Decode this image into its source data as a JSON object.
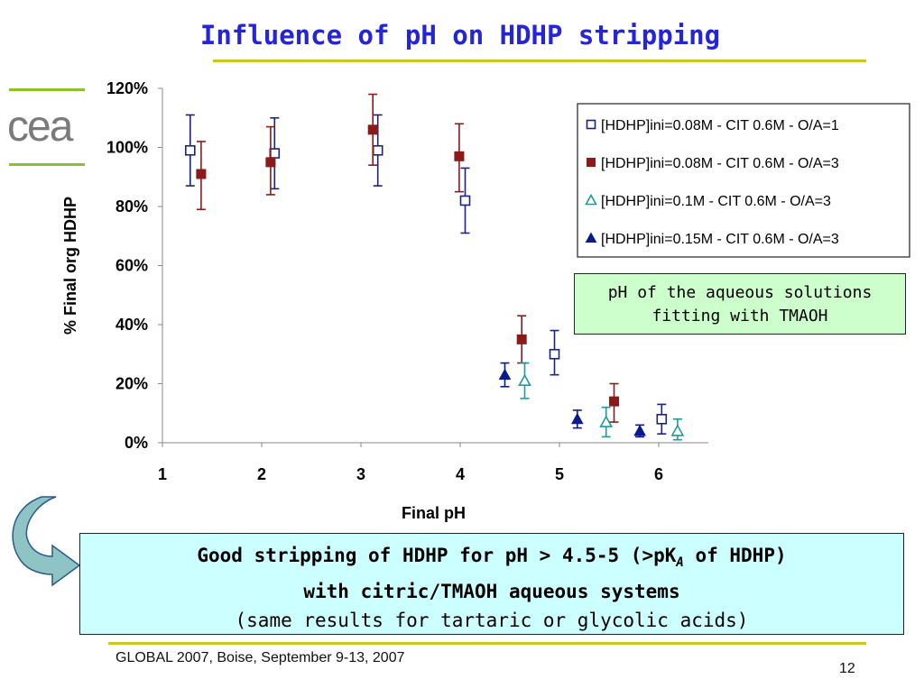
{
  "slide": {
    "title": "Influence of pH on HDHP stripping",
    "note_lines": [
      "pH of the aqueous solutions",
      "fitting with TMAOH"
    ],
    "conclusion": {
      "line1_a": "Good stripping of HDHP for pH > 4.5-5 (>pK",
      "line1_sub": "A",
      "line1_b": " of HDHP)",
      "line2": "with citric/TMAOH aqueous systems",
      "line3": "(same results for tartaric or glycolic acids)"
    },
    "footer": "GLOBAL 2007, Boise, September 9-13, 2007",
    "page_number": "12",
    "logo_text": "cea",
    "colors": {
      "title": "#2424d8",
      "accent_rule": "#c8c81e",
      "logo_bars": "#8ac22a",
      "logo_text": "#7a7a7a"
    }
  },
  "chart_data": {
    "type": "scatter",
    "xlabel": "Final pH",
    "ylabel": "% Final org HDHP",
    "xlim": [
      1,
      6.5
    ],
    "ylim": [
      0,
      120
    ],
    "x_ticks": [
      "1",
      "2",
      "3",
      "4",
      "5",
      "6"
    ],
    "y_ticks": [
      "0%",
      "20%",
      "40%",
      "60%",
      "80%",
      "100%",
      "120%"
    ],
    "grid": false,
    "legend_position": "top-right",
    "series": [
      {
        "name": "[HDHP]ini=0.08M - CIT 0.6M - O/A=1",
        "marker": "open-square",
        "color": "#1a237e",
        "points": [
          {
            "x": 1.28,
            "y": 99,
            "lo": 87,
            "hi": 111
          },
          {
            "x": 2.13,
            "y": 98,
            "lo": 86,
            "hi": 110
          },
          {
            "x": 3.17,
            "y": 99,
            "lo": 87,
            "hi": 111
          },
          {
            "x": 4.05,
            "y": 82,
            "lo": 71,
            "hi": 93
          },
          {
            "x": 4.95,
            "y": 30,
            "lo": 23,
            "hi": 38
          },
          {
            "x": 6.03,
            "y": 8,
            "lo": 3,
            "hi": 13
          }
        ]
      },
      {
        "name": "[HDHP]ini=0.08M - CIT 0.6M - O/A=3",
        "marker": "filled-square",
        "color": "#8b1a1a",
        "points": [
          {
            "x": 1.39,
            "y": 91,
            "lo": 79,
            "hi": 102
          },
          {
            "x": 2.09,
            "y": 95,
            "lo": 84,
            "hi": 107
          },
          {
            "x": 3.12,
            "y": 106,
            "lo": 94,
            "hi": 118
          },
          {
            "x": 3.99,
            "y": 97,
            "lo": 85,
            "hi": 108
          },
          {
            "x": 4.62,
            "y": 35,
            "lo": 27,
            "hi": 43
          },
          {
            "x": 5.55,
            "y": 14,
            "lo": 7,
            "hi": 20
          }
        ]
      },
      {
        "name": "[HDHP]ini=0.1M - CIT 0.6M - O/A=3",
        "marker": "open-triangle",
        "color": "#1e9a9a",
        "points": [
          {
            "x": 4.65,
            "y": 21,
            "lo": 15,
            "hi": 27
          },
          {
            "x": 5.47,
            "y": 7,
            "lo": 2,
            "hi": 12
          },
          {
            "x": 6.19,
            "y": 4,
            "lo": 1,
            "hi": 8
          }
        ]
      },
      {
        "name": "[HDHP]ini=0.15M - CIT 0.6M - O/A=3",
        "marker": "filled-triangle",
        "color": "#0a1a8a",
        "points": [
          {
            "x": 4.45,
            "y": 23,
            "lo": 19,
            "hi": 27
          },
          {
            "x": 5.18,
            "y": 8,
            "lo": 5,
            "hi": 11
          },
          {
            "x": 5.81,
            "y": 4,
            "lo": 2,
            "hi": 6
          }
        ]
      }
    ]
  }
}
